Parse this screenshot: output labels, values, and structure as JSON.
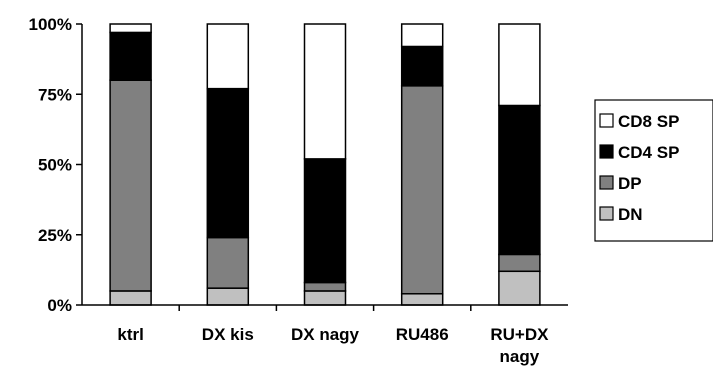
{
  "chart_data": {
    "type": "bar",
    "stacked": true,
    "percent": true,
    "title": "",
    "xlabel": "",
    "ylabel": "",
    "ylim": [
      0,
      100
    ],
    "yticks": [
      "0%",
      "25%",
      "50%",
      "75%",
      "100%"
    ],
    "categories": [
      [
        "ktrl"
      ],
      [
        "DX kis"
      ],
      [
        "DX nagy"
      ],
      [
        "RU486"
      ],
      [
        "RU+DX",
        "nagy"
      ]
    ],
    "series": [
      {
        "name": "DN",
        "color": "#c0c0c0",
        "values": [
          5,
          6,
          5,
          4,
          12
        ]
      },
      {
        "name": "DP",
        "color": "#808080",
        "values": [
          75,
          18,
          3,
          74,
          6
        ]
      },
      {
        "name": "CD4 SP",
        "color": "#000000",
        "values": [
          17,
          53,
          44,
          14,
          53
        ]
      },
      {
        "name": "CD8 SP",
        "color": "#ffffff",
        "values": [
          3,
          23,
          48,
          8,
          29
        ]
      }
    ],
    "legend": {
      "position": "right",
      "order": [
        "CD8 SP",
        "CD4 SP",
        "DP",
        "DN"
      ]
    },
    "grid": false
  }
}
